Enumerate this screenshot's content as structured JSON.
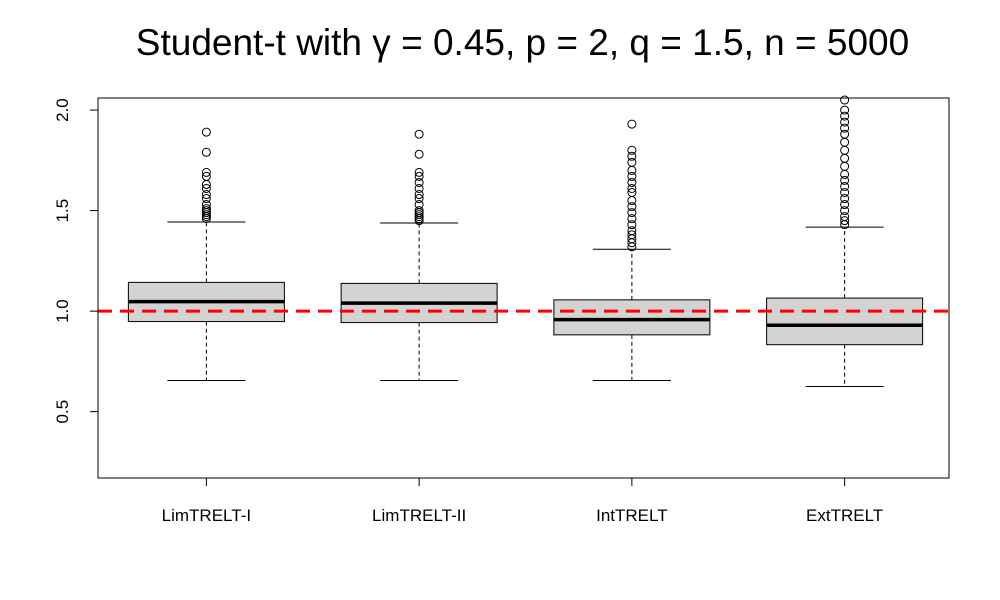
{
  "chart_data": {
    "type": "box",
    "title": "Student-t with γ = 0.45, p = 2, q = 1.5, n = 5000",
    "xlabel": "",
    "ylabel": "",
    "categories": [
      "LimTRELT-I",
      "LimTRELT-II",
      "IntTRELT",
      "ExtTRELT"
    ],
    "ylim": [
      0.17,
      2.06
    ],
    "y_ticks": [
      "0.5",
      "1.0",
      "1.5",
      "2.0"
    ],
    "y_tick_values": [
      0.5,
      1.0,
      1.5,
      2.0
    ],
    "reference_line": {
      "value": 1.0,
      "color": "#ff0000",
      "style": "dashed"
    },
    "box_fill": "#d3d3d3",
    "grid": false,
    "boxes": [
      {
        "name": "LimTRELT-I",
        "lower_whisker": 0.655,
        "q1": 0.948,
        "median": 1.047,
        "q3": 1.143,
        "upper_whisker": 1.443,
        "outliers": [
          1.46,
          1.47,
          1.48,
          1.49,
          1.5,
          1.51,
          1.53,
          1.56,
          1.58,
          1.61,
          1.63,
          1.67,
          1.69,
          1.79,
          1.89
        ]
      },
      {
        "name": "LimTRELT-II",
        "lower_whisker": 0.655,
        "q1": 0.943,
        "median": 1.04,
        "q3": 1.138,
        "upper_whisker": 1.438,
        "outliers": [
          1.45,
          1.46,
          1.47,
          1.48,
          1.49,
          1.5,
          1.53,
          1.56,
          1.58,
          1.61,
          1.64,
          1.67,
          1.69,
          1.78,
          1.88
        ]
      },
      {
        "name": "IntTRELT",
        "lower_whisker": 0.655,
        "q1": 0.882,
        "median": 0.958,
        "q3": 1.056,
        "upper_whisker": 1.308,
        "outliers": [
          1.32,
          1.34,
          1.36,
          1.38,
          1.4,
          1.43,
          1.46,
          1.49,
          1.52,
          1.55,
          1.59,
          1.61,
          1.64,
          1.67,
          1.7,
          1.74,
          1.77,
          1.8,
          1.93
        ]
      },
      {
        "name": "ExtTRELT",
        "lower_whisker": 0.625,
        "q1": 0.833,
        "median": 0.93,
        "q3": 1.065,
        "upper_whisker": 1.418,
        "outliers": [
          1.43,
          1.45,
          1.47,
          1.5,
          1.53,
          1.56,
          1.59,
          1.62,
          1.65,
          1.68,
          1.72,
          1.76,
          1.8,
          1.84,
          1.88,
          1.91,
          1.94,
          1.97,
          2.0,
          2.05
        ]
      }
    ]
  }
}
